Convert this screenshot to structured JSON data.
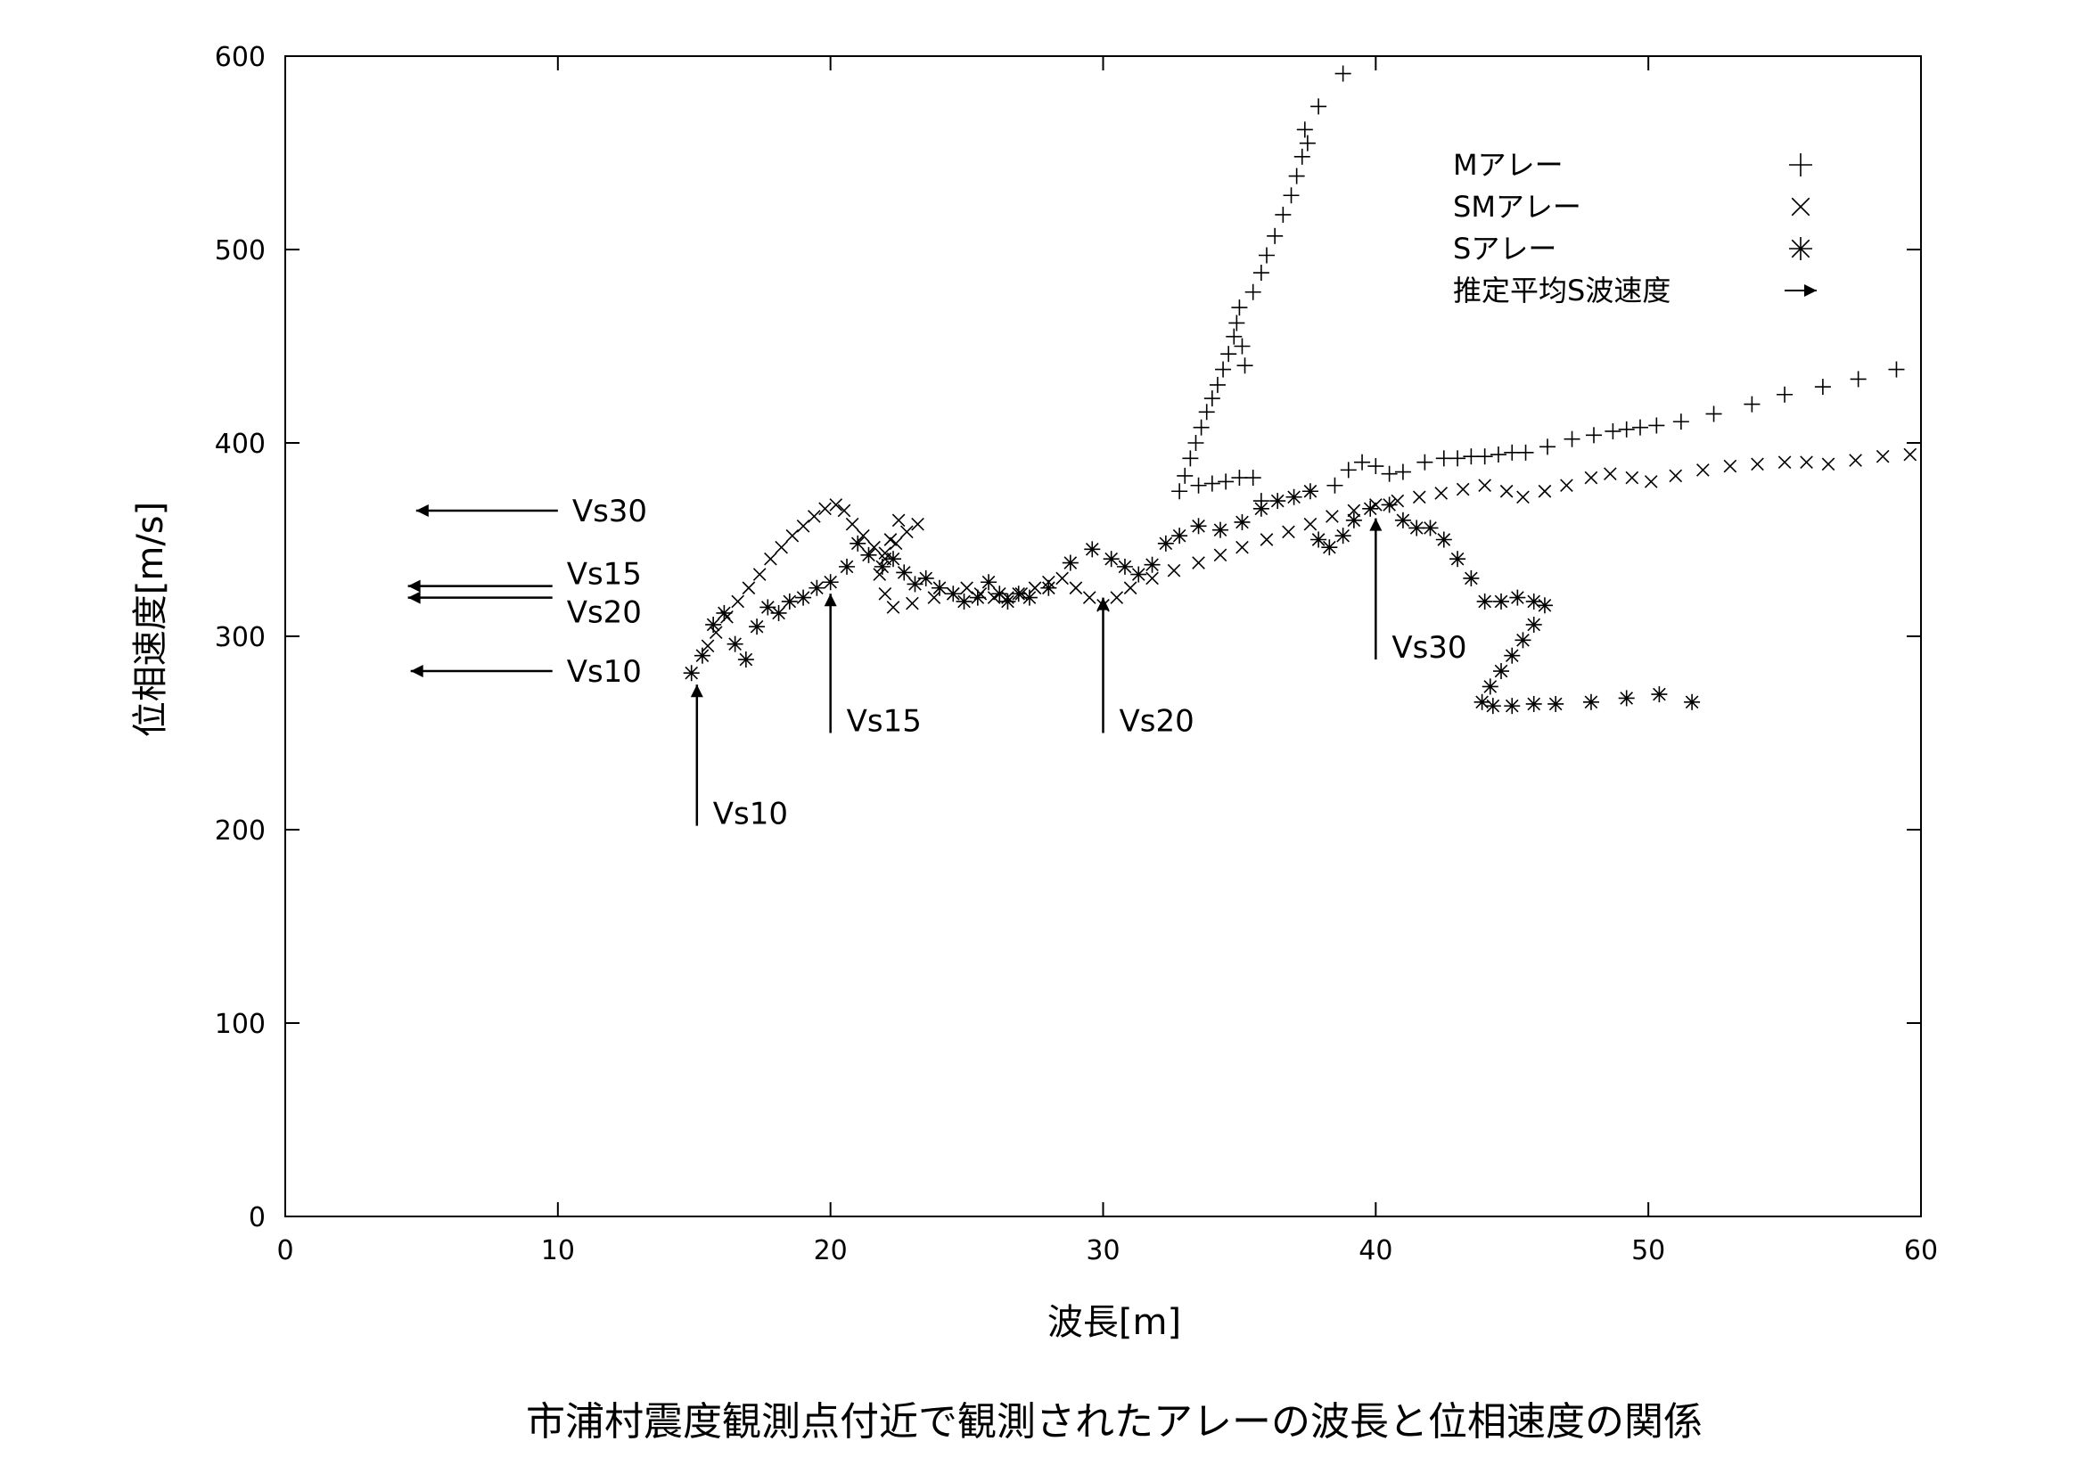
{
  "caption": "市浦村震度観測点付近で観測されたアレーの波長と位相速度の関係",
  "chart_data": {
    "type": "scatter",
    "xlabel": "波長[m]",
    "ylabel": "位相速度[m/s]",
    "xlim": [
      0,
      60
    ],
    "ylim": [
      0,
      600
    ],
    "xticks": [
      "0",
      "10",
      "20",
      "30",
      "40",
      "50",
      "60"
    ],
    "yticks": [
      "0",
      "100",
      "200",
      "300",
      "400",
      "500",
      "600"
    ],
    "grid": false,
    "legend_position": "top-right",
    "series": [
      {
        "name": "Mアレー",
        "marker": "plus",
        "points": [
          [
            32.8,
            375
          ],
          [
            33.0,
            383
          ],
          [
            33.2,
            392
          ],
          [
            33.4,
            400
          ],
          [
            33.6,
            408
          ],
          [
            33.8,
            416
          ],
          [
            34.0,
            423
          ],
          [
            34.2,
            430
          ],
          [
            34.4,
            438
          ],
          [
            34.6,
            446
          ],
          [
            34.8,
            455
          ],
          [
            34.9,
            462
          ],
          [
            35.0,
            470
          ],
          [
            35.1,
            450
          ],
          [
            35.2,
            440
          ],
          [
            35.5,
            478
          ],
          [
            35.8,
            488
          ],
          [
            36.0,
            497
          ],
          [
            36.3,
            507
          ],
          [
            36.6,
            518
          ],
          [
            36.9,
            528
          ],
          [
            37.1,
            538
          ],
          [
            37.3,
            548
          ],
          [
            37.5,
            555
          ],
          [
            37.4,
            562
          ],
          [
            37.9,
            574
          ],
          [
            38.8,
            591
          ],
          [
            33.5,
            378
          ],
          [
            34.0,
            379
          ],
          [
            34.5,
            380
          ],
          [
            35.0,
            382
          ],
          [
            35.5,
            382
          ],
          [
            35.8,
            370
          ],
          [
            38.5,
            378
          ],
          [
            39.0,
            386
          ],
          [
            39.5,
            390
          ],
          [
            40.0,
            388
          ],
          [
            40.5,
            384
          ],
          [
            41.0,
            385
          ],
          [
            41.8,
            390
          ],
          [
            42.5,
            392
          ],
          [
            43.0,
            392
          ],
          [
            43.5,
            393
          ],
          [
            44.0,
            393
          ],
          [
            44.5,
            394
          ],
          [
            45.0,
            395
          ],
          [
            45.5,
            395
          ],
          [
            46.3,
            398
          ],
          [
            47.2,
            402
          ],
          [
            48.0,
            404
          ],
          [
            48.7,
            406
          ],
          [
            49.2,
            407
          ],
          [
            49.7,
            408
          ],
          [
            50.3,
            409
          ],
          [
            51.2,
            411
          ],
          [
            52.4,
            415
          ],
          [
            53.8,
            420
          ],
          [
            55.0,
            425
          ],
          [
            56.4,
            429
          ],
          [
            57.7,
            433
          ],
          [
            59.1,
            438
          ]
        ]
      },
      {
        "name": "SMアレー",
        "marker": "x",
        "points": [
          [
            15.5,
            295
          ],
          [
            15.8,
            302
          ],
          [
            16.2,
            310
          ],
          [
            16.6,
            318
          ],
          [
            17.0,
            325
          ],
          [
            17.4,
            332
          ],
          [
            17.8,
            340
          ],
          [
            18.2,
            346
          ],
          [
            18.6,
            352
          ],
          [
            19.0,
            357
          ],
          [
            19.4,
            362
          ],
          [
            19.8,
            366
          ],
          [
            20.2,
            368
          ],
          [
            20.5,
            365
          ],
          [
            20.8,
            358
          ],
          [
            21.2,
            352
          ],
          [
            21.6,
            346
          ],
          [
            22.0,
            343
          ],
          [
            22.4,
            348
          ],
          [
            22.8,
            354
          ],
          [
            23.2,
            358
          ],
          [
            22.5,
            360
          ],
          [
            22.2,
            350
          ],
          [
            22.0,
            340
          ],
          [
            21.8,
            332
          ],
          [
            22.0,
            322
          ],
          [
            22.3,
            315
          ],
          [
            23.0,
            317
          ],
          [
            23.8,
            320
          ],
          [
            24.5,
            322
          ],
          [
            25.0,
            325
          ],
          [
            25.5,
            322
          ],
          [
            26.0,
            320
          ],
          [
            26.5,
            320
          ],
          [
            27.0,
            322
          ],
          [
            27.5,
            325
          ],
          [
            28.0,
            328
          ],
          [
            28.5,
            330
          ],
          [
            29.0,
            325
          ],
          [
            29.5,
            320
          ],
          [
            30.0,
            316
          ],
          [
            30.5,
            320
          ],
          [
            31.0,
            325
          ],
          [
            31.8,
            330
          ],
          [
            32.6,
            334
          ],
          [
            33.5,
            338
          ],
          [
            34.3,
            342
          ],
          [
            35.1,
            346
          ],
          [
            36.0,
            350
          ],
          [
            36.8,
            354
          ],
          [
            37.6,
            358
          ],
          [
            38.4,
            362
          ],
          [
            39.2,
            365
          ],
          [
            40.0,
            368
          ],
          [
            40.8,
            370
          ],
          [
            41.6,
            372
          ],
          [
            42.4,
            374
          ],
          [
            43.2,
            376
          ],
          [
            44.0,
            378
          ],
          [
            44.8,
            375
          ],
          [
            45.4,
            372
          ],
          [
            46.2,
            375
          ],
          [
            47.0,
            378
          ],
          [
            47.9,
            382
          ],
          [
            48.6,
            384
          ],
          [
            49.4,
            382
          ],
          [
            50.1,
            380
          ],
          [
            51.0,
            383
          ],
          [
            52.0,
            386
          ],
          [
            53.0,
            388
          ],
          [
            54.0,
            389
          ],
          [
            55.0,
            390
          ],
          [
            55.8,
            390
          ],
          [
            56.6,
            389
          ],
          [
            57.6,
            391
          ],
          [
            58.6,
            393
          ],
          [
            59.6,
            394
          ]
        ]
      },
      {
        "name": "Sアレー",
        "marker": "asterisk",
        "points": [
          [
            14.9,
            281
          ],
          [
            15.3,
            290
          ],
          [
            15.7,
            306
          ],
          [
            16.1,
            312
          ],
          [
            16.5,
            296
          ],
          [
            16.9,
            288
          ],
          [
            17.3,
            305
          ],
          [
            17.7,
            315
          ],
          [
            18.1,
            312
          ],
          [
            18.5,
            318
          ],
          [
            19.0,
            320
          ],
          [
            19.5,
            325
          ],
          [
            20.0,
            328
          ],
          [
            20.6,
            336
          ],
          [
            21.0,
            348
          ],
          [
            21.4,
            342
          ],
          [
            21.9,
            336
          ],
          [
            22.3,
            340
          ],
          [
            22.7,
            333
          ],
          [
            23.1,
            327
          ],
          [
            23.5,
            330
          ],
          [
            24.0,
            325
          ],
          [
            24.5,
            322
          ],
          [
            24.9,
            318
          ],
          [
            25.4,
            320
          ],
          [
            25.8,
            328
          ],
          [
            26.2,
            322
          ],
          [
            26.5,
            318
          ],
          [
            26.9,
            322
          ],
          [
            27.3,
            320
          ],
          [
            28.0,
            325
          ],
          [
            28.8,
            338
          ],
          [
            29.6,
            345
          ],
          [
            30.3,
            340
          ],
          [
            30.8,
            336
          ],
          [
            31.3,
            332
          ],
          [
            31.8,
            337
          ],
          [
            32.3,
            348
          ],
          [
            32.8,
            352
          ],
          [
            33.5,
            357
          ],
          [
            34.3,
            355
          ],
          [
            35.1,
            359
          ],
          [
            35.8,
            366
          ],
          [
            36.4,
            370
          ],
          [
            37.0,
            372
          ],
          [
            37.6,
            375
          ],
          [
            37.9,
            350
          ],
          [
            38.3,
            346
          ],
          [
            38.8,
            352
          ],
          [
            39.2,
            360
          ],
          [
            39.8,
            366
          ],
          [
            40.5,
            368
          ],
          [
            41.0,
            360
          ],
          [
            41.5,
            356
          ],
          [
            42.0,
            356
          ],
          [
            42.5,
            350
          ],
          [
            43.0,
            340
          ],
          [
            43.5,
            330
          ],
          [
            44.0,
            318
          ],
          [
            44.6,
            318
          ],
          [
            45.2,
            320
          ],
          [
            45.8,
            318
          ],
          [
            46.2,
            316
          ],
          [
            45.8,
            306
          ],
          [
            45.4,
            298
          ],
          [
            45.0,
            290
          ],
          [
            44.6,
            282
          ],
          [
            44.2,
            274
          ],
          [
            43.9,
            266
          ],
          [
            44.3,
            264
          ],
          [
            45.0,
            264
          ],
          [
            45.8,
            265
          ],
          [
            46.6,
            265
          ],
          [
            47.9,
            266
          ],
          [
            49.2,
            268
          ],
          [
            50.4,
            270
          ],
          [
            51.6,
            266
          ]
        ]
      },
      {
        "name": "推定平均S波速度",
        "marker": "arrow",
        "arrows": [
          {
            "label": "Vs10",
            "kind": "vertical",
            "x": 15.1,
            "y_from": 202,
            "y_to": 275
          },
          {
            "label": "Vs15",
            "kind": "vertical",
            "x": 20.0,
            "y_from": 250,
            "y_to": 322
          },
          {
            "label": "Vs20",
            "kind": "vertical",
            "x": 30.0,
            "y_from": 250,
            "y_to": 320
          },
          {
            "label": "Vs30",
            "kind": "vertical",
            "x": 40.0,
            "y_from": 288,
            "y_to": 361
          },
          {
            "label": "Vs30",
            "kind": "horizontal",
            "y": 365,
            "x_from": 10.0,
            "x_to": 4.8
          },
          {
            "label": "Vs15",
            "kind": "horizontal",
            "y": 326,
            "x_from": 9.8,
            "x_to": 4.5
          },
          {
            "label": "Vs20",
            "kind": "horizontal",
            "y": 320,
            "x_from": 9.8,
            "x_to": 4.5
          },
          {
            "label": "Vs10",
            "kind": "horizontal",
            "y": 282,
            "x_from": 9.8,
            "x_to": 4.6
          }
        ]
      }
    ],
    "legend": [
      {
        "label": "Mアレー",
        "symbol": "+"
      },
      {
        "label": "SMアレー",
        "symbol": "×"
      },
      {
        "label": "Sアレー",
        "symbol": "※"
      },
      {
        "label": "推定平均S波速度",
        "symbol": "→"
      }
    ]
  }
}
